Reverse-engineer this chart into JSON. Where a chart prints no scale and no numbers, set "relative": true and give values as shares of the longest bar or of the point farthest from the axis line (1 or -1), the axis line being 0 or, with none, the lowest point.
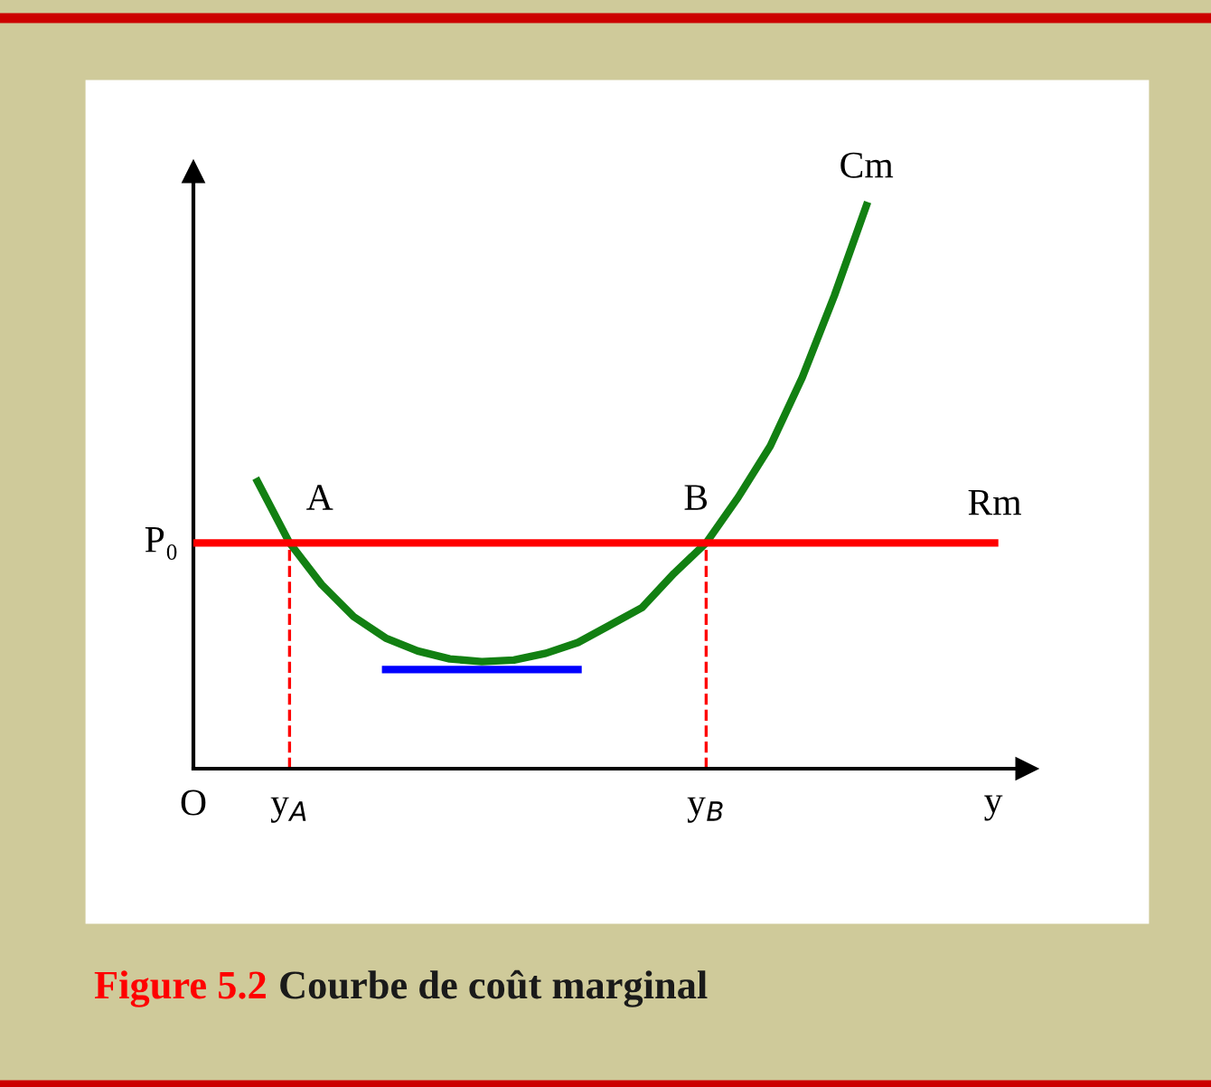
{
  "chart_data": {
    "type": "line",
    "relative": true,
    "title": "Figure 5.2 Courbe de coût marginal",
    "xlabel": "y",
    "categories": [
      "O",
      null,
      null,
      "y$_{A}$",
      null,
      null,
      null,
      null,
      null,
      null,
      null,
      null,
      null,
      null,
      null,
      null,
      "y$_{B}$",
      null,
      null,
      null,
      null,
      null,
      null,
      null,
      null,
      null,
      null
    ],
    "series": [
      {
        "name": "Cm",
        "color": "#128012",
        "values": [
          null,
          null,
          0.51,
          0.401,
          0.327,
          0.27,
          0.232,
          0.209,
          0.195,
          0.19,
          0.193,
          0.205,
          0.224,
          0.255,
          0.286,
          0.347,
          0.401,
          0.482,
          0.573,
          0.695,
          0.84,
          1.0,
          null,
          null,
          null,
          null,
          null
        ]
      },
      {
        "name": "Rm",
        "color": "#ff0000",
        "values": [
          0.401,
          0.401,
          0.401,
          0.401,
          0.401,
          0.401,
          0.401,
          0.401,
          0.401,
          0.401,
          0.401,
          0.401,
          0.401,
          0.401,
          0.401,
          0.401,
          0.401,
          0.401,
          0.401,
          0.401,
          0.401,
          0.401,
          0.401,
          0.401,
          0.401,
          0.401,
          null
        ]
      },
      {
        "color": "#0000ff",
        "values": [
          null,
          null,
          null,
          null,
          null,
          null,
          0.176,
          0.176,
          0.176,
          0.176,
          0.176,
          0.176,
          0.176,
          null,
          null,
          null,
          null,
          null,
          null,
          null,
          null,
          null,
          null,
          null,
          null,
          null,
          null
        ]
      }
    ],
    "ref_lines": [
      {
        "axis": "x",
        "value": "y$_{A}$",
        "color": "#ff0000",
        "line_style": "dashed"
      },
      {
        "axis": "x",
        "value": "y$_{B}$",
        "color": "#ff0000",
        "line_style": "dashed"
      }
    ],
    "annotations": [
      {
        "text": "P₀",
        "x": "O",
        "y": 0.401
      },
      {
        "text": "A",
        "x": "y$_{A}$",
        "y": 0.401
      },
      {
        "text": "B",
        "x": "y$_{B}$",
        "y": 0.401
      }
    ],
    "legend": false,
    "marker": "none",
    "line_style": "solid"
  }
}
